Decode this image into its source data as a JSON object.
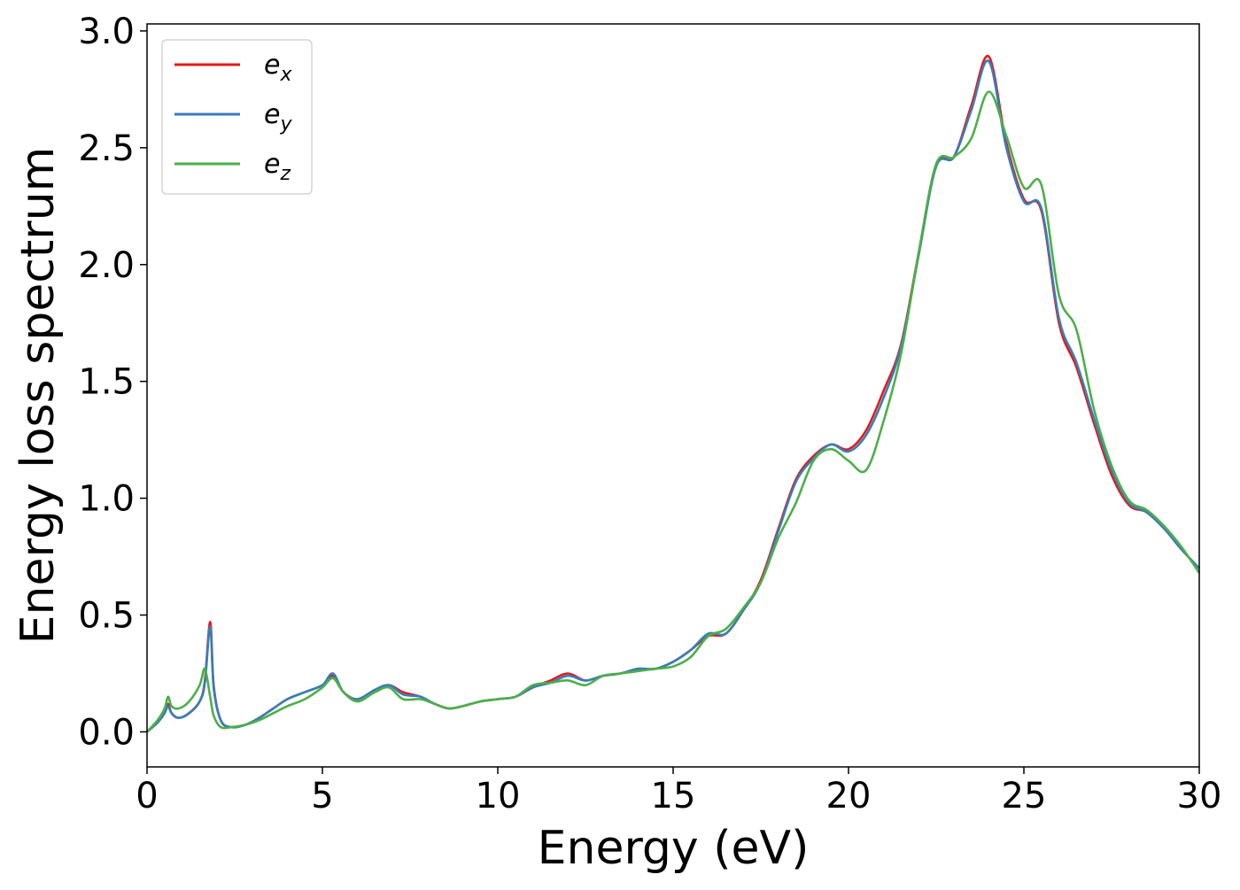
{
  "chart_data": {
    "type": "line",
    "title": "",
    "xlabel": "Energy (eV)",
    "ylabel": "Energy loss spectrum",
    "xlim": [
      0,
      30
    ],
    "ylim": [
      -0.15,
      3.03
    ],
    "xticks": [
      0,
      5,
      10,
      15,
      20,
      25,
      30
    ],
    "xtick_labels": [
      "0",
      "5",
      "10",
      "15",
      "20",
      "25",
      "30"
    ],
    "yticks": [
      0.0,
      0.5,
      1.0,
      1.5,
      2.0,
      2.5,
      3.0
    ],
    "ytick_labels": [
      "0.0",
      "0.5",
      "1.0",
      "1.5",
      "2.0",
      "2.5",
      "3.0"
    ],
    "grid": false,
    "legend": {
      "position": "top-left",
      "entries": [
        {
          "base": "e",
          "sub": "x"
        },
        {
          "base": "e",
          "sub": "y"
        },
        {
          "base": "e",
          "sub": "z"
        }
      ]
    },
    "series": [
      {
        "name": "e_x",
        "color": "#e41a1c",
        "x": [
          0,
          0.3,
          0.5,
          0.6,
          0.7,
          0.9,
          1.2,
          1.5,
          1.65,
          1.8,
          1.9,
          2.1,
          2.4,
          2.8,
          3.2,
          3.6,
          4.0,
          4.5,
          5.0,
          5.3,
          5.6,
          6.0,
          6.5,
          6.9,
          7.3,
          7.8,
          8.2,
          8.6,
          9.0,
          9.5,
          10.0,
          10.5,
          11.0,
          11.5,
          12.0,
          12.5,
          13.0,
          13.5,
          14.0,
          14.5,
          15.0,
          15.5,
          16.0,
          16.5,
          17.0,
          17.5,
          18.0,
          18.5,
          19.0,
          19.5,
          20.0,
          20.5,
          21.0,
          21.5,
          22.0,
          22.5,
          23.0,
          23.5,
          24.0,
          24.5,
          25.0,
          25.5,
          26.0,
          26.5,
          27.0,
          27.5,
          28.0,
          28.5,
          29.0,
          29.5,
          30.0
        ],
        "y": [
          0.0,
          0.04,
          0.08,
          0.12,
          0.08,
          0.06,
          0.08,
          0.13,
          0.22,
          0.47,
          0.2,
          0.05,
          0.02,
          0.03,
          0.06,
          0.1,
          0.14,
          0.17,
          0.2,
          0.24,
          0.17,
          0.14,
          0.18,
          0.2,
          0.17,
          0.15,
          0.12,
          0.1,
          0.11,
          0.13,
          0.14,
          0.15,
          0.19,
          0.22,
          0.25,
          0.22,
          0.24,
          0.25,
          0.27,
          0.27,
          0.3,
          0.35,
          0.41,
          0.42,
          0.52,
          0.65,
          0.87,
          1.08,
          1.18,
          1.23,
          1.21,
          1.29,
          1.46,
          1.66,
          2.05,
          2.43,
          2.46,
          2.68,
          2.89,
          2.52,
          2.28,
          2.23,
          1.75,
          1.56,
          1.32,
          1.1,
          0.97,
          0.94,
          0.87,
          0.78,
          0.7
        ]
      },
      {
        "name": "e_y",
        "color": "#377eb8",
        "x": [
          0,
          0.3,
          0.5,
          0.6,
          0.7,
          0.9,
          1.2,
          1.5,
          1.65,
          1.8,
          1.9,
          2.1,
          2.4,
          2.8,
          3.2,
          3.6,
          4.0,
          4.5,
          5.0,
          5.3,
          5.6,
          6.0,
          6.5,
          6.9,
          7.3,
          7.8,
          8.2,
          8.6,
          9.0,
          9.5,
          10.0,
          10.5,
          11.0,
          11.5,
          12.0,
          12.5,
          13.0,
          13.5,
          14.0,
          14.5,
          15.0,
          15.5,
          16.0,
          16.5,
          17.0,
          17.5,
          18.0,
          18.5,
          19.0,
          19.5,
          20.0,
          20.5,
          21.0,
          21.5,
          22.0,
          22.5,
          23.0,
          23.5,
          24.0,
          24.5,
          25.0,
          25.5,
          26.0,
          26.5,
          27.0,
          27.5,
          28.0,
          28.5,
          29.0,
          29.5,
          30.0
        ],
        "y": [
          0.0,
          0.04,
          0.08,
          0.11,
          0.08,
          0.06,
          0.08,
          0.13,
          0.21,
          0.45,
          0.19,
          0.05,
          0.02,
          0.03,
          0.06,
          0.1,
          0.14,
          0.17,
          0.2,
          0.25,
          0.17,
          0.14,
          0.18,
          0.2,
          0.16,
          0.15,
          0.12,
          0.1,
          0.11,
          0.13,
          0.14,
          0.15,
          0.19,
          0.21,
          0.24,
          0.22,
          0.24,
          0.25,
          0.27,
          0.27,
          0.3,
          0.35,
          0.42,
          0.42,
          0.52,
          0.64,
          0.86,
          1.07,
          1.17,
          1.23,
          1.2,
          1.27,
          1.43,
          1.65,
          2.04,
          2.42,
          2.46,
          2.66,
          2.87,
          2.5,
          2.27,
          2.24,
          1.77,
          1.58,
          1.34,
          1.12,
          0.98,
          0.94,
          0.87,
          0.78,
          0.7
        ]
      },
      {
        "name": "e_z",
        "color": "#4daf4a",
        "x": [
          0,
          0.3,
          0.5,
          0.6,
          0.7,
          0.9,
          1.2,
          1.5,
          1.65,
          1.8,
          1.9,
          2.1,
          2.4,
          2.8,
          3.2,
          3.6,
          4.0,
          4.5,
          5.0,
          5.3,
          5.6,
          6.0,
          6.5,
          6.9,
          7.3,
          7.8,
          8.2,
          8.6,
          9.0,
          9.5,
          10.0,
          10.5,
          11.0,
          11.5,
          12.0,
          12.5,
          13.0,
          13.5,
          14.0,
          14.5,
          15.0,
          15.5,
          16.0,
          16.5,
          17.0,
          17.5,
          18.0,
          18.5,
          19.0,
          19.5,
          20.0,
          20.5,
          21.0,
          21.5,
          22.0,
          22.5,
          23.0,
          23.5,
          24.0,
          24.5,
          25.0,
          25.5,
          26.0,
          26.5,
          27.0,
          27.5,
          28.0,
          28.5,
          29.0,
          29.5,
          30.0
        ],
        "y": [
          0.0,
          0.05,
          0.1,
          0.15,
          0.11,
          0.1,
          0.13,
          0.2,
          0.27,
          0.15,
          0.07,
          0.02,
          0.02,
          0.03,
          0.05,
          0.08,
          0.11,
          0.14,
          0.19,
          0.23,
          0.17,
          0.13,
          0.17,
          0.19,
          0.14,
          0.14,
          0.12,
          0.1,
          0.11,
          0.13,
          0.14,
          0.15,
          0.2,
          0.21,
          0.22,
          0.2,
          0.24,
          0.25,
          0.26,
          0.27,
          0.28,
          0.32,
          0.41,
          0.44,
          0.53,
          0.64,
          0.83,
          0.98,
          1.16,
          1.21,
          1.16,
          1.12,
          1.33,
          1.62,
          2.05,
          2.43,
          2.46,
          2.54,
          2.74,
          2.55,
          2.33,
          2.34,
          1.87,
          1.72,
          1.38,
          1.14,
          0.99,
          0.95,
          0.88,
          0.79,
          0.68
        ]
      }
    ]
  }
}
